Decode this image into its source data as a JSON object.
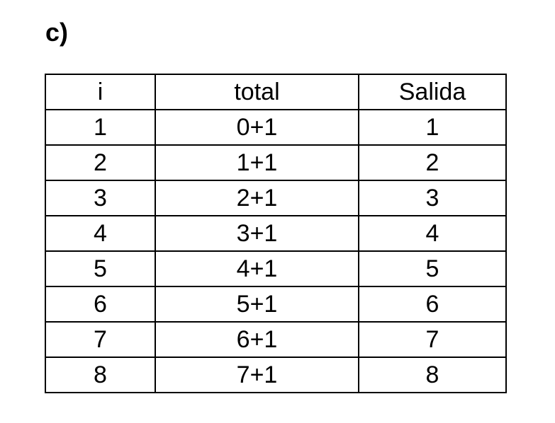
{
  "heading": "c)",
  "table": {
    "headers": [
      "i",
      "total",
      "Salida"
    ],
    "rows": [
      [
        "1",
        "0+1",
        "1"
      ],
      [
        "2",
        "1+1",
        "2"
      ],
      [
        "3",
        "2+1",
        "3"
      ],
      [
        "4",
        "3+1",
        "4"
      ],
      [
        "5",
        "4+1",
        "5"
      ],
      [
        "6",
        "5+1",
        "6"
      ],
      [
        "7",
        "6+1",
        "7"
      ],
      [
        "8",
        "7+1",
        "8"
      ]
    ]
  }
}
